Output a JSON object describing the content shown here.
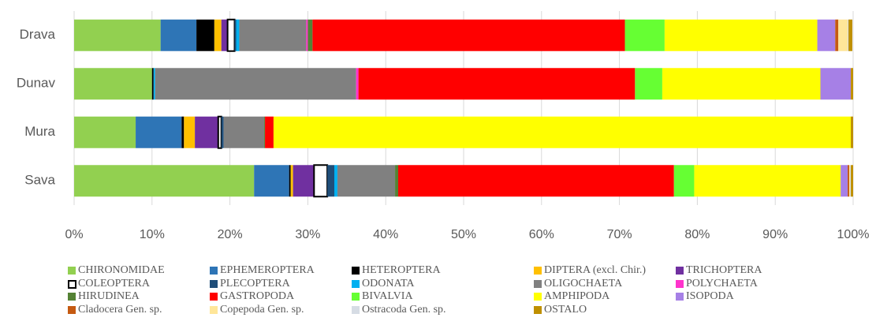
{
  "chart_data": {
    "type": "stacked_bar_horizontal",
    "categories": [
      "Drava",
      "Dunav",
      "Mura",
      "Sava"
    ],
    "series": [
      {
        "name": "CHIRONOMIDAE",
        "color": "#92d050",
        "values": [
          11.1,
          10.0,
          7.9,
          23.1
        ]
      },
      {
        "name": "EPHEMEROPTERA",
        "color": "#2e75b6",
        "values": [
          4.6,
          0,
          5.9,
          4.5
        ]
      },
      {
        "name": "HETEROPTERA",
        "color": "#000000",
        "values": [
          2.3,
          0.2,
          0.3,
          0.2
        ]
      },
      {
        "name": "DIPTERA (excl. Chir.)",
        "color": "#ffc000",
        "values": [
          0.9,
          0,
          1.4,
          0.3
        ]
      },
      {
        "name": "TRICHOPTERA",
        "color": "#7030a0",
        "values": [
          0.8,
          0,
          3.0,
          2.7
        ]
      },
      {
        "name": "COLEOPTERA",
        "color": "#ffffff",
        "values": [
          0.9,
          0,
          0.4,
          1.7
        ]
      },
      {
        "name": "PLECOPTERA",
        "color": "#1f4e79",
        "values": [
          0.2,
          0,
          0.3,
          0.9
        ]
      },
      {
        "name": "ODONATA",
        "color": "#00b0f0",
        "values": [
          0.4,
          0.2,
          0,
          0.4
        ]
      },
      {
        "name": "OLIGOCHAETA",
        "color": "#808080",
        "values": [
          8.6,
          25.8,
          5.2,
          7.4
        ]
      },
      {
        "name": "POLYCHAETA",
        "color": "#ff33cc",
        "values": [
          0.2,
          0.3,
          0,
          0
        ]
      },
      {
        "name": "HIRUDINEA",
        "color": "#548235",
        "values": [
          0.6,
          0,
          0.1,
          0.4
        ]
      },
      {
        "name": "GASTROPODA",
        "color": "#ff0000",
        "values": [
          40.1,
          35.5,
          1.1,
          35.4
        ]
      },
      {
        "name": "BIVALVIA",
        "color": "#66ff33",
        "values": [
          5.1,
          3.5,
          0,
          2.6
        ]
      },
      {
        "name": "AMPHIPODA",
        "color": "#ffff00",
        "values": [
          19.6,
          20.3,
          74.1,
          18.8
        ]
      },
      {
        "name": "ISOPODA",
        "color": "#a680e6",
        "values": [
          2.3,
          3.9,
          0,
          0.9
        ]
      },
      {
        "name": "Cladocera Gen. sp.",
        "color": "#c55a11",
        "values": [
          0.4,
          0,
          0,
          0.2
        ]
      },
      {
        "name": "Copepoda Gen. sp.",
        "color": "#ffe699",
        "values": [
          1.2,
          0,
          0,
          0.1
        ]
      },
      {
        "name": "Ostracoda Gen. sp.",
        "color": "#d6dce4",
        "values": [
          0.1,
          0,
          0,
          0.1
        ]
      },
      {
        "name": "OSTALO",
        "color": "#bf9000",
        "values": [
          0.5,
          0.3,
          0.3,
          0.3
        ]
      }
    ],
    "xlim": [
      0,
      100
    ],
    "xticks": [
      {
        "value": 0,
        "label": "0%"
      },
      {
        "value": 10,
        "label": "10%"
      },
      {
        "value": 20,
        "label": "20%"
      },
      {
        "value": 30,
        "label": "30%"
      },
      {
        "value": 40,
        "label": "40%"
      },
      {
        "value": 50,
        "label": "50%"
      },
      {
        "value": 60,
        "label": "60%"
      },
      {
        "value": 70,
        "label": "70%"
      },
      {
        "value": 80,
        "label": "80%"
      },
      {
        "value": 90,
        "label": "90%"
      },
      {
        "value": 100,
        "label": "100%"
      }
    ],
    "grid": true,
    "legend": "bottom"
  }
}
